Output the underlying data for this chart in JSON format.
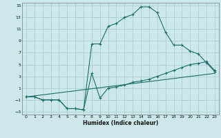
{
  "xlabel": "Humidex (Indice chaleur)",
  "bg_color": "#cce8ea",
  "grid_color": "#aacfd2",
  "line_color": "#1a6e6a",
  "xlim": [
    -0.5,
    23.5
  ],
  "ylim": [
    -3.5,
    15.5
  ],
  "xticks": [
    0,
    1,
    2,
    3,
    4,
    5,
    6,
    7,
    8,
    9,
    10,
    11,
    12,
    13,
    14,
    15,
    16,
    17,
    18,
    19,
    20,
    21,
    22,
    23
  ],
  "yticks": [
    -3,
    -1,
    1,
    3,
    5,
    7,
    9,
    11,
    13,
    15
  ],
  "line1_x": [
    0,
    1,
    2,
    3,
    4,
    5,
    6,
    7,
    8,
    9,
    10,
    11,
    12,
    13,
    14,
    15,
    16,
    17,
    18,
    19,
    20,
    21,
    22,
    23
  ],
  "line1_y": [
    -0.5,
    -0.5,
    -1.0,
    -1.0,
    -1.0,
    -2.5,
    -2.5,
    -2.7,
    8.5,
    8.5,
    11.5,
    12.0,
    13.0,
    13.5,
    14.8,
    14.8,
    13.8,
    10.5,
    8.3,
    8.3,
    7.3,
    6.8,
    5.3,
    3.8
  ],
  "line2_x": [
    0,
    1,
    2,
    3,
    4,
    5,
    6,
    7,
    8,
    9,
    10,
    11,
    12,
    13,
    14,
    15,
    16,
    17,
    18,
    19,
    20,
    21,
    22,
    23
  ],
  "line2_y": [
    -0.5,
    -0.5,
    -1.0,
    -1.0,
    -1.0,
    -2.5,
    -2.5,
    -2.7,
    3.5,
    -0.7,
    1.0,
    1.2,
    1.5,
    2.0,
    2.2,
    2.5,
    3.0,
    3.5,
    4.0,
    4.5,
    5.0,
    5.2,
    5.5,
    4.0
  ],
  "line3_x": [
    0,
    23
  ],
  "line3_y": [
    -0.5,
    3.5
  ]
}
